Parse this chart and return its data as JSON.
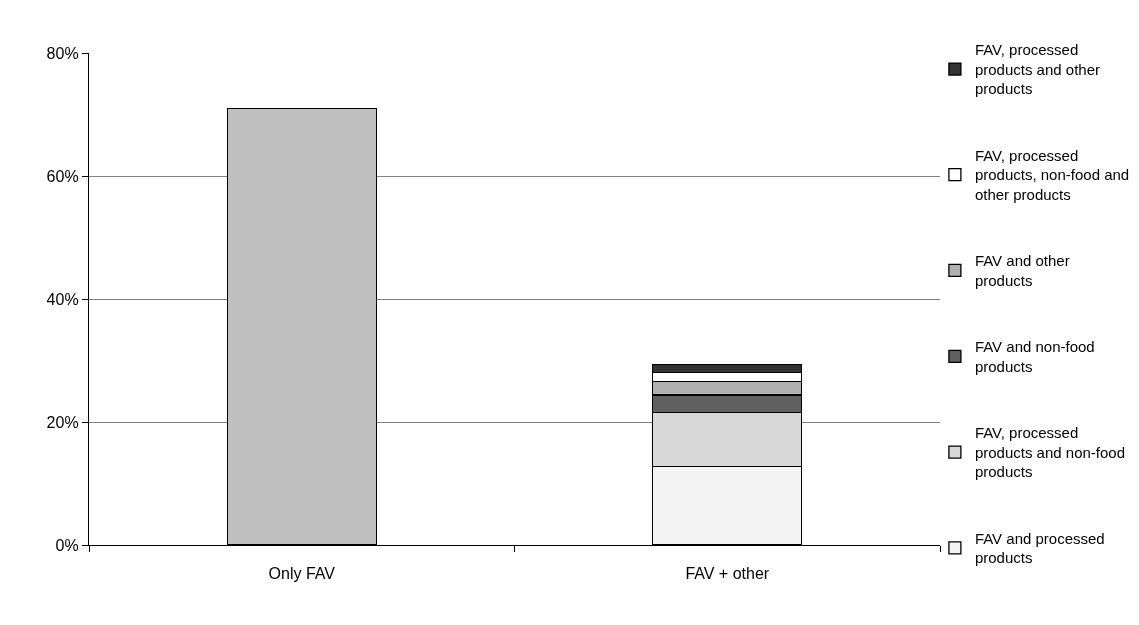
{
  "chart_data": {
    "type": "bar",
    "categories": [
      "Only FAV",
      "FAV + other"
    ],
    "stacked": true,
    "series": [
      {
        "color": "#c0c0c0",
        "values": [
          71,
          null
        ]
      },
      {
        "name": "FAV and processed products",
        "color": "#f4f4f4",
        "values": [
          null,
          12.8
        ]
      },
      {
        "name": "FAV, processed products and non-food products",
        "color": "#d8d8d8",
        "values": [
          null,
          8.8
        ]
      },
      {
        "name": "FAV and non-food products",
        "color": "#606060",
        "values": [
          null,
          2.8
        ]
      },
      {
        "name": "FAV and other products",
        "color": "#b0b0b0",
        "values": [
          null,
          2.2
        ]
      },
      {
        "name": "FAV, processed products, non-food and other products",
        "color": "#ffffff",
        "values": [
          null,
          1.5
        ]
      },
      {
        "name": "FAV, processed products and other products",
        "color": "#333333",
        "values": [
          null,
          1.2
        ]
      }
    ],
    "ylim": [
      0,
      80
    ],
    "yticks": [
      {
        "value": 0,
        "label": "0%"
      },
      {
        "value": 20,
        "label": "20%"
      },
      {
        "value": 40,
        "label": "40%"
      },
      {
        "value": 60,
        "label": "60%"
      },
      {
        "value": 80,
        "label": "80%"
      }
    ],
    "grid": "y",
    "legend": "right"
  }
}
